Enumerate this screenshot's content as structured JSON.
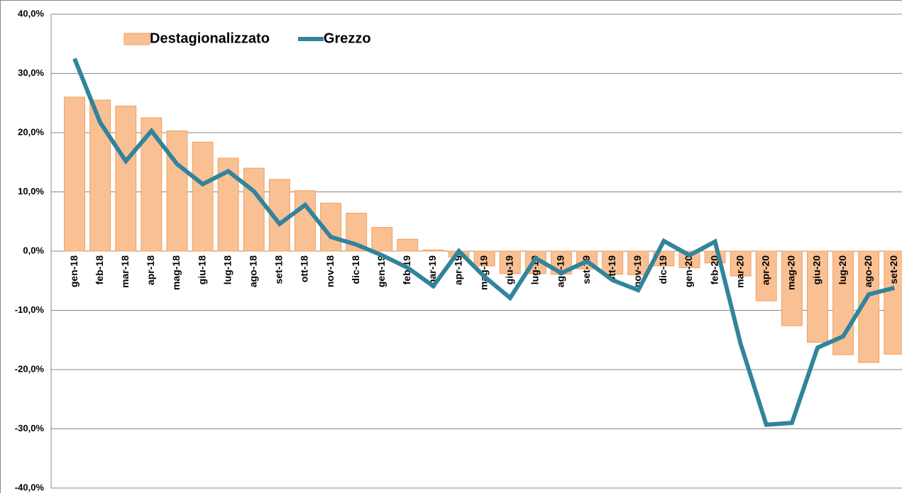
{
  "chart_data": {
    "type": "bar-line",
    "categories": [
      "gen-18",
      "feb-18",
      "mar-18",
      "apr-18",
      "mag-18",
      "giu-18",
      "lug-18",
      "ago-18",
      "set-18",
      "ott-18",
      "nov-18",
      "dic-18",
      "gen-19",
      "feb-19",
      "mar-19",
      "apr-19",
      "mag-19",
      "giu-19",
      "lug-19",
      "ago-19",
      "set-19",
      "ott-19",
      "nov-19",
      "dic-19",
      "gen-20",
      "feb-20",
      "mar-20",
      "apr-20",
      "mag-20",
      "giu-20",
      "lug-20",
      "ago-20",
      "set-20"
    ],
    "series": [
      {
        "name": "Destagionalizzato",
        "type": "bar",
        "color": "#f9c093",
        "values": [
          26.0,
          25.5,
          24.5,
          22.5,
          20.3,
          18.4,
          15.7,
          14.0,
          12.1,
          10.2,
          8.1,
          6.4,
          4.0,
          2.0,
          0.2,
          -1.0,
          -2.5,
          -3.8,
          -3.8,
          -3.9,
          -3.0,
          -3.9,
          -4.0,
          -2.5,
          -2.8,
          -2.0,
          -4.2,
          -8.4,
          -12.6,
          -15.4,
          -17.5,
          -18.8,
          -17.4
        ]
      },
      {
        "name": "Grezzo",
        "type": "line",
        "color": "#31849b",
        "values": [
          32.5,
          21.7,
          15.2,
          20.3,
          14.7,
          11.3,
          13.5,
          10.1,
          4.6,
          7.8,
          2.4,
          1.1,
          -0.7,
          -2.8,
          -5.9,
          0.0,
          -4.3,
          -7.9,
          -1.2,
          -3.7,
          -1.7,
          -4.9,
          -6.6,
          1.7,
          -0.7,
          1.6,
          -15.7,
          -29.3,
          -29.0,
          -16.3,
          -14.4,
          -7.3,
          -6.2
        ]
      }
    ],
    "ylim": [
      -40,
      40
    ],
    "yticks": [
      {
        "value": -40,
        "label": "-40,0%"
      },
      {
        "value": -30,
        "label": "-30,0%"
      },
      {
        "value": -20,
        "label": "-20,0%"
      },
      {
        "value": -10,
        "label": "-10,0%"
      },
      {
        "value": 0,
        "label": "0,0%"
      },
      {
        "value": 10,
        "label": "10,0%"
      },
      {
        "value": 20,
        "label": "20,0%"
      },
      {
        "value": 30,
        "label": "30,0%"
      },
      {
        "value": 40,
        "label": "40,0%"
      }
    ],
    "grid": true,
    "legend": "top"
  }
}
